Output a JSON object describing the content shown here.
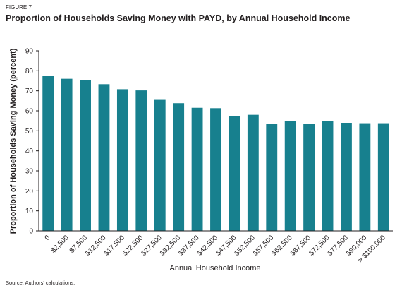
{
  "chart_data": {
    "type": "bar",
    "figure_label": "FIGURE 7",
    "title": "Proportion of Households Saving Money with PAYD, by Annual Household Income",
    "x_label": "Annual Household Income",
    "y_label": "Proportion of Households Saving Money (percent)",
    "source": "Source: Authors' calculations.",
    "categories": [
      "0",
      "$2,500",
      "$7,500",
      "$12,500",
      "$17,500",
      "$22,500",
      "$27,500",
      "$32,500",
      "$37,500",
      "$42,500",
      "$47,500",
      "$52,500",
      "$57,500",
      "$62,500",
      "$67,500",
      "$72,500",
      "$77,500",
      "$90,000",
      "> $100,000"
    ],
    "values": [
      77.5,
      76,
      75.5,
      73.3,
      70.8,
      70.2,
      65.8,
      63.8,
      61.5,
      61.3,
      57.3,
      58,
      53.5,
      55,
      53.5,
      54.8,
      54,
      53.8,
      53.8
    ],
    "color": "#17808e",
    "ylim": [
      0,
      90
    ],
    "yticks": [
      0,
      10,
      20,
      30,
      40,
      50,
      60,
      70,
      80,
      90
    ]
  }
}
